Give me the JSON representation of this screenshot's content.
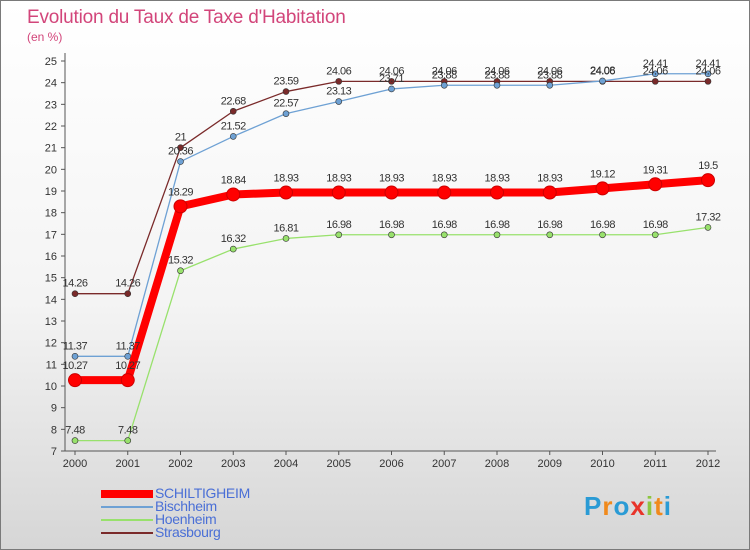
{
  "title": "Evolution du Taux de Taxe d'Habitation",
  "unit": "(en %)",
  "logo": {
    "text": "Proxiti",
    "letters": [
      {
        "ch": "P",
        "color": "#2a9bd5"
      },
      {
        "ch": "r",
        "color": "#f08a1c"
      },
      {
        "ch": "o",
        "color": "#2a9bd5"
      },
      {
        "ch": "x",
        "color": "#e8342a"
      },
      {
        "ch": "i",
        "color": "#8cc63f"
      },
      {
        "ch": "t",
        "color": "#f08a1c"
      },
      {
        "ch": "i",
        "color": "#2a9bd5"
      }
    ]
  },
  "chart_data": {
    "type": "line",
    "x": [
      2000,
      2001,
      2002,
      2003,
      2004,
      2005,
      2006,
      2007,
      2008,
      2009,
      2010,
      2011,
      2012
    ],
    "ylim": [
      7,
      25
    ],
    "yticks": [
      7,
      8,
      9,
      10,
      11,
      12,
      13,
      14,
      15,
      16,
      17,
      18,
      19,
      20,
      21,
      22,
      23,
      24,
      25
    ],
    "grid": false,
    "legend_position": "bottom-left",
    "series": [
      {
        "name": "SCHILTIGHEIM",
        "color": "#ff0000",
        "emphasis": true,
        "values": [
          10.27,
          10.27,
          18.29,
          18.84,
          18.93,
          18.93,
          18.93,
          18.93,
          18.93,
          18.93,
          19.12,
          19.31,
          19.5
        ],
        "labels": [
          "10.27",
          "10.27",
          "18.29",
          "18.84",
          "18.93",
          "18.93",
          "18.93",
          "18.93",
          "18.93",
          "18.93",
          "19.12",
          "19.31",
          "19.5"
        ]
      },
      {
        "name": "Bischheim",
        "color": "#6ea1d4",
        "values": [
          11.37,
          11.37,
          20.36,
          21.52,
          22.57,
          23.13,
          23.71,
          23.88,
          23.88,
          23.88,
          24.08,
          24.41,
          24.41
        ],
        "labels": [
          "11.37",
          "11.37",
          "20.36",
          "21.52",
          "22.57",
          "23.13",
          "23.71",
          "23.88",
          "23.88",
          "23.88",
          "24.08",
          "24.41",
          "24.41"
        ]
      },
      {
        "name": "Hoenheim",
        "color": "#98e16c",
        "values": [
          7.48,
          7.48,
          15.32,
          16.32,
          16.81,
          16.98,
          16.98,
          16.98,
          16.98,
          16.98,
          16.98,
          16.98,
          17.32
        ],
        "labels": [
          "7.48",
          "7.48",
          "15.32",
          "16.32",
          "16.81",
          "16.98",
          "16.98",
          "16.98",
          "16.98",
          "16.98",
          "16.98",
          "16.98",
          "17.32"
        ]
      },
      {
        "name": "Strasbourg",
        "color": "#7a2a2a",
        "values": [
          14.26,
          14.26,
          21,
          22.68,
          23.59,
          24.06,
          24.06,
          24.06,
          24.06,
          24.06,
          24.06,
          24.06,
          24.06
        ],
        "labels": [
          "14.26",
          "14.26",
          "21",
          "22.68",
          "23.59",
          "24.06",
          "24.06",
          "24.06",
          "24.06",
          "24.06",
          "24.06",
          "24.06",
          "24.06"
        ]
      }
    ]
  }
}
